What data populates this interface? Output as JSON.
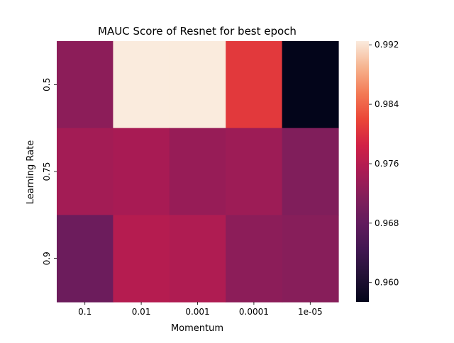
{
  "chart_data": {
    "type": "heatmap",
    "title": "MAUC Score of Resnet for best epoch",
    "xlabel": "Momentum",
    "ylabel": "Learning Rate",
    "x_categories": [
      "0.1",
      "0.01",
      "0.001",
      "0.0001",
      "1e-05"
    ],
    "y_categories": [
      "0.5",
      "0.75",
      "0.9"
    ],
    "values": [
      [
        0.9723,
        0.9925,
        0.9925,
        0.9808,
        0.9574
      ],
      [
        0.9743,
        0.9748,
        0.9733,
        0.9738,
        0.9712
      ],
      [
        0.9691,
        0.9759,
        0.9754,
        0.9723,
        0.9719
      ]
    ],
    "colorbar": {
      "range": [
        0.9574,
        0.9925
      ],
      "ticks": [
        "0.960",
        "0.968",
        "0.976",
        "0.984",
        "0.992"
      ],
      "colormap": "rocket"
    }
  }
}
